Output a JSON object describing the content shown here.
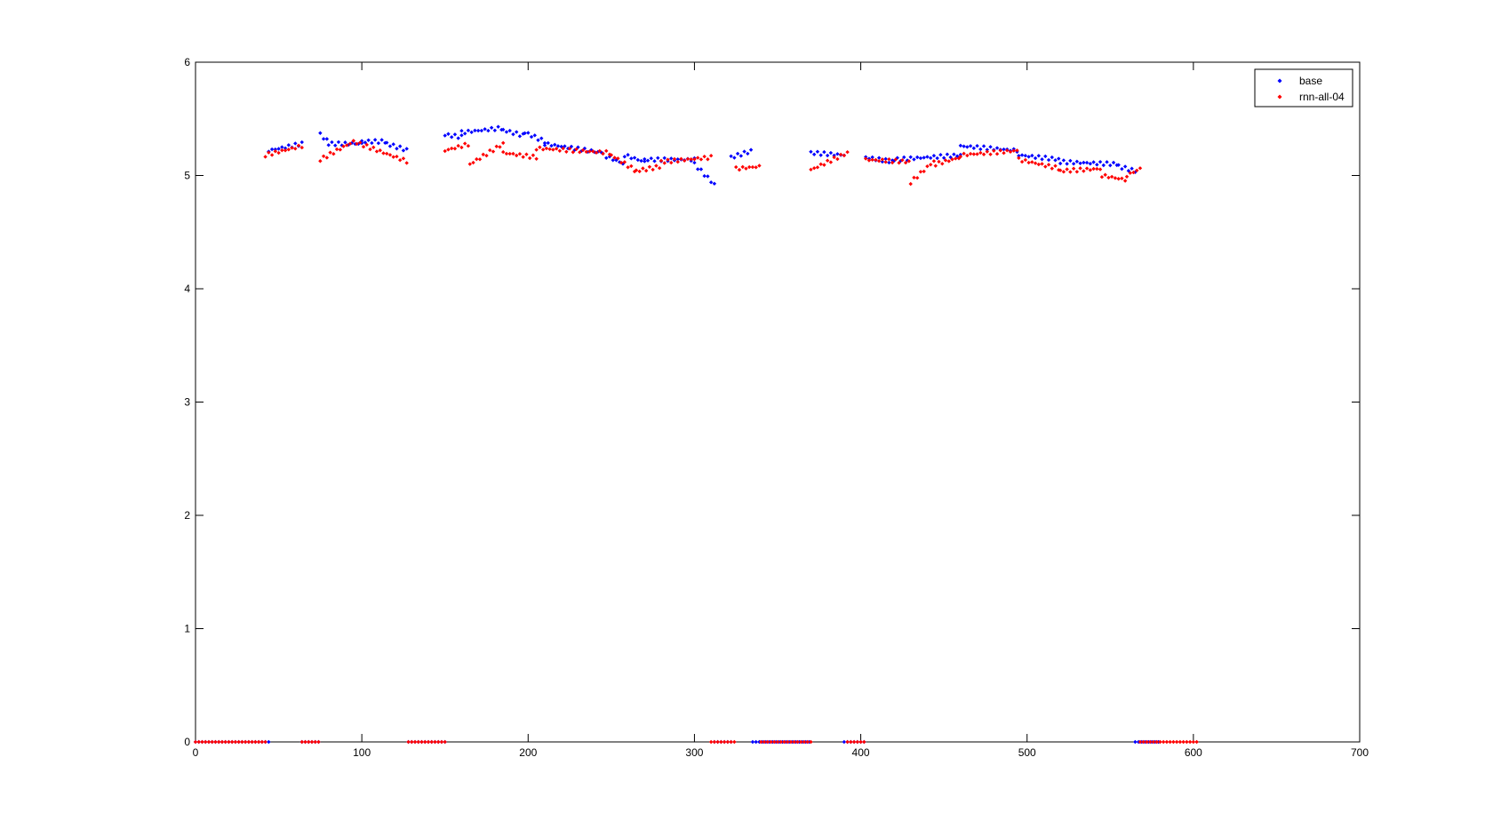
{
  "chart_data": {
    "type": "scatter",
    "title": "",
    "xlabel": "",
    "ylabel": "",
    "xlim": [
      0,
      700
    ],
    "ylim": [
      0,
      6
    ],
    "x_ticks": [
      "0",
      "100",
      "200",
      "300",
      "400",
      "500",
      "600",
      "700"
    ],
    "y_ticks": [
      "0",
      "1",
      "2",
      "3",
      "4",
      "5",
      "6"
    ],
    "grid": false,
    "legend_position": "top-right",
    "series": [
      {
        "name": "base",
        "color": "#0000ff",
        "marker": "diamond",
        "segments": [
          [
            0,
            44,
            0,
            0
          ],
          [
            44,
            64,
            5.22,
            5.28
          ],
          [
            64,
            75,
            0,
            0
          ],
          [
            75,
            80,
            5.36,
            5.3
          ],
          [
            80,
            100,
            5.28,
            5.28
          ],
          [
            100,
            115,
            5.3,
            5.3
          ],
          [
            115,
            128,
            5.28,
            5.22
          ],
          [
            128,
            150,
            0,
            0
          ],
          [
            150,
            160,
            5.36,
            5.34
          ],
          [
            160,
            185,
            5.38,
            5.42
          ],
          [
            185,
            198,
            5.4,
            5.35
          ],
          [
            198,
            210,
            5.38,
            5.3
          ],
          [
            210,
            245,
            5.28,
            5.2
          ],
          [
            245,
            258,
            5.18,
            5.1
          ],
          [
            258,
            270,
            5.18,
            5.12
          ],
          [
            270,
            300,
            5.14,
            5.14
          ],
          [
            300,
            312,
            5.1,
            4.92
          ],
          [
            312,
            322,
            0,
            0
          ],
          [
            322,
            335,
            5.16,
            5.22
          ],
          [
            335,
            370,
            0,
            0
          ],
          [
            370,
            390,
            5.2,
            5.18
          ],
          [
            390,
            403,
            0,
            0
          ],
          [
            403,
            420,
            5.16,
            5.12
          ],
          [
            420,
            460,
            5.14,
            5.18
          ],
          [
            460,
            495,
            5.26,
            5.22
          ],
          [
            495,
            520,
            5.18,
            5.14
          ],
          [
            520,
            555,
            5.12,
            5.1
          ],
          [
            555,
            565,
            5.08,
            5.04
          ],
          [
            565,
            580,
            0,
            0
          ]
        ]
      },
      {
        "name": "rnn-all-04",
        "color": "#ff0000",
        "marker": "diamond",
        "segments": [
          [
            0,
            42,
            0,
            0
          ],
          [
            42,
            64,
            5.18,
            5.26
          ],
          [
            64,
            75,
            0,
            0
          ],
          [
            75,
            95,
            5.14,
            5.3
          ],
          [
            95,
            128,
            5.3,
            5.12
          ],
          [
            128,
            150,
            0,
            0
          ],
          [
            150,
            165,
            5.22,
            5.28
          ],
          [
            165,
            185,
            5.1,
            5.28
          ],
          [
            185,
            205,
            5.2,
            5.16
          ],
          [
            205,
            250,
            5.24,
            5.2
          ],
          [
            250,
            265,
            5.18,
            5.04
          ],
          [
            265,
            280,
            5.04,
            5.08
          ],
          [
            280,
            310,
            5.12,
            5.16
          ],
          [
            310,
            325,
            0,
            0
          ],
          [
            325,
            340,
            5.06,
            5.08
          ],
          [
            340,
            370,
            0,
            0
          ],
          [
            370,
            392,
            5.05,
            5.2
          ],
          [
            392,
            403,
            0,
            0
          ],
          [
            403,
            430,
            5.14,
            5.12
          ],
          [
            430,
            445,
            4.94,
            5.14
          ],
          [
            445,
            460,
            5.1,
            5.16
          ],
          [
            460,
            495,
            5.18,
            5.22
          ],
          [
            495,
            520,
            5.14,
            5.06
          ],
          [
            520,
            545,
            5.04,
            5.06
          ],
          [
            545,
            560,
            5.0,
            4.96
          ],
          [
            560,
            568,
            5.0,
            5.06
          ],
          [
            568,
            602,
            0,
            0
          ]
        ]
      }
    ]
  }
}
